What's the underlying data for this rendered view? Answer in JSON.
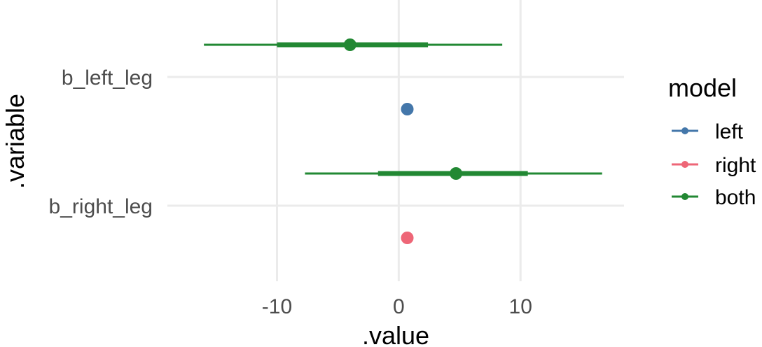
{
  "chart_data": {
    "type": "scatter",
    "subtype": "interval-dot",
    "xlabel": ".value",
    "ylabel": ".variable",
    "xlim": [
      -19,
      18.5
    ],
    "x_ticks": [
      -10,
      0,
      10
    ],
    "x_tick_labels": [
      "-10",
      "0",
      "10"
    ],
    "categories": [
      "b_left_leg",
      "b_right_leg"
    ],
    "grid": true,
    "legend": {
      "title": "model",
      "placement": "right",
      "entries": [
        "left",
        "right",
        "both"
      ]
    },
    "series": [
      {
        "name": "left",
        "color": "#4477AA",
        "points": [
          {
            "variable": "b_left_leg",
            "value": 0.7
          }
        ]
      },
      {
        "name": "right",
        "color": "#EE6677",
        "points": [
          {
            "variable": "b_right_leg",
            "value": 0.7
          }
        ]
      },
      {
        "name": "both",
        "color": "#228833",
        "points": [
          {
            "variable": "b_left_leg",
            "value": -4.0,
            "inner": [
              -10.0,
              2.4
            ],
            "outer": [
              -16.0,
              8.5
            ]
          },
          {
            "variable": "b_right_leg",
            "value": 4.7,
            "inner": [
              -1.7,
              10.6
            ],
            "outer": [
              -7.7,
              16.7
            ]
          }
        ]
      }
    ]
  }
}
